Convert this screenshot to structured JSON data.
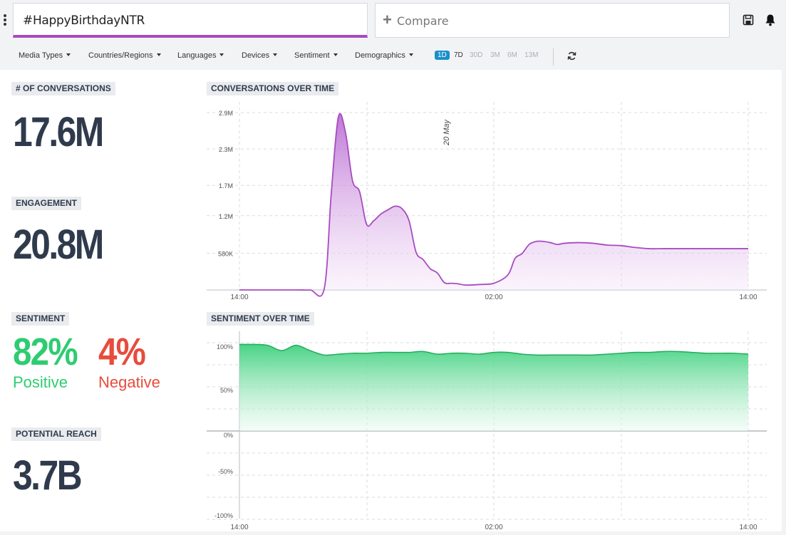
{
  "header": {
    "query": "#HappyBirthdayNTR",
    "compare_placeholder": "Compare"
  },
  "filters": [
    "Media Types",
    "Countries/Regions",
    "Languages",
    "Devices",
    "Sentiment",
    "Demographics"
  ],
  "ranges": {
    "active": "1D",
    "items": [
      "1D",
      "7D",
      "30D",
      "3M",
      "6M",
      "13M"
    ]
  },
  "metrics": {
    "conversations": {
      "label": "# OF CONVERSATIONS",
      "value": "17.6M"
    },
    "engagement": {
      "label": "ENGAGEMENT",
      "value": "20.8M"
    },
    "sentiment": {
      "label": "SENTIMENT",
      "positive_value": "82%",
      "positive_label": "Positive",
      "negative_value": "4%",
      "negative_label": "Negative"
    },
    "reach": {
      "label": "POTENTIAL REACH",
      "value": "3.7B"
    }
  },
  "colors": {
    "accent_purple": "#a74bbf",
    "positive": "#2ecc71",
    "negative": "#e74c3c",
    "active_range": "#1a8fc9",
    "text_dark": "#2f3b4c"
  },
  "chart_data": [
    {
      "type": "area",
      "title": "CONVERSATIONS OVER TIME",
      "x_tick_labels": [
        "14:00",
        "02:00",
        "14:00"
      ],
      "y_tick_labels": [
        "580K",
        "1.2M",
        "1.7M",
        "2.3M",
        "2.9M"
      ],
      "ylim": [
        0,
        2.9
      ],
      "annotation": "20 May",
      "series": [
        {
          "x_hours": [
            0,
            2,
            4,
            5,
            6,
            6.5,
            7,
            7.5,
            8,
            8.5,
            9,
            9.5,
            10,
            10.5,
            11,
            11.5,
            12,
            12.5,
            13,
            13.5,
            14,
            14.5,
            15,
            15.5,
            16,
            17,
            18,
            19,
            19.5,
            20,
            20.5,
            21,
            21.5,
            22,
            22.5,
            23,
            24,
            25,
            26,
            27,
            28,
            29,
            30,
            31,
            32,
            33,
            34,
            35,
            36
          ],
          "values": [
            0,
            0,
            0,
            0,
            0.02,
            1.6,
            2.85,
            2.6,
            1.8,
            1.62,
            1.08,
            1.14,
            1.25,
            1.32,
            1.38,
            1.34,
            1.14,
            0.62,
            0.5,
            0.35,
            0.28,
            0.12,
            0.11,
            0.1,
            0.08,
            0.09,
            0.11,
            0.25,
            0.52,
            0.6,
            0.75,
            0.8,
            0.8,
            0.78,
            0.75,
            0.77,
            0.78,
            0.77,
            0.74,
            0.73,
            0.7,
            0.68,
            0.68,
            0.68,
            0.68,
            0.68,
            0.68,
            0.68,
            0.68
          ]
        }
      ]
    },
    {
      "type": "area",
      "title": "SENTIMENT OVER TIME",
      "x_tick_labels": [
        "14:00",
        "02:00",
        "14:00"
      ],
      "y_tick_labels": [
        "100%",
        "50%",
        "0%",
        "-50%",
        "-100%"
      ],
      "ylim": [
        -100,
        100
      ],
      "series": [
        {
          "x_hours": [
            0,
            1,
            2,
            3,
            4,
            5,
            6,
            7,
            8,
            9,
            10,
            11,
            12,
            13,
            14,
            15,
            16,
            17,
            18,
            19,
            20,
            21,
            22,
            23,
            24,
            25,
            26,
            27,
            28,
            29,
            30,
            31,
            32,
            33,
            34,
            35,
            36
          ],
          "values": [
            98,
            98,
            97,
            91,
            97,
            91,
            86,
            87,
            88,
            88,
            89,
            89,
            89,
            90,
            87,
            88,
            88,
            87,
            89,
            89,
            87,
            86,
            86,
            86,
            86,
            86,
            87,
            88,
            89,
            89,
            90,
            90,
            89,
            88,
            88,
            88,
            87
          ]
        }
      ]
    }
  ]
}
